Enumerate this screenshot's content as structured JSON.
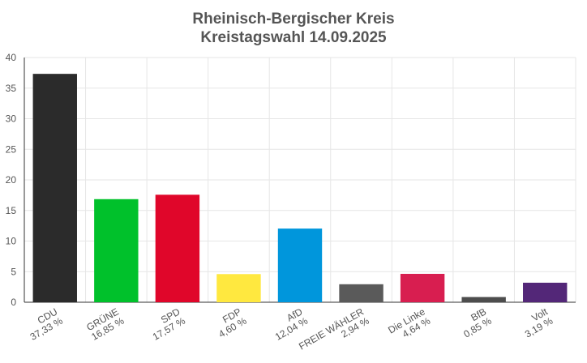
{
  "chart_data": {
    "type": "bar",
    "title": "Rheinisch-Bergischer Kreis",
    "subtitle": "Kreistagswahl 14.09.2025",
    "categories": [
      "CDU",
      "GRÜNE",
      "SPD",
      "FDP",
      "AfD",
      "FREIE WÄHLER",
      "Die Linke",
      "BfB",
      "Volt"
    ],
    "value_labels": [
      "37,33 %",
      "16,85 %",
      "17,57 %",
      "4,60 %",
      "12,04 %",
      "2,94 %",
      "4,64 %",
      "0,85 %",
      "3,19 %"
    ],
    "values": [
      37.33,
      16.85,
      17.57,
      4.6,
      12.04,
      2.94,
      4.64,
      0.85,
      3.19
    ],
    "colors": [
      "#2b2b2b",
      "#00c12b",
      "#e0062a",
      "#ffe83f",
      "#0096dc",
      "#5a5a5a",
      "#d81e50",
      "#4d4d4d",
      "#532778"
    ],
    "ylim": [
      0,
      40
    ],
    "yticks": [
      "0",
      "5",
      "10",
      "15",
      "20",
      "25",
      "30",
      "35",
      "40"
    ],
    "grid": true,
    "xlabel": "",
    "ylabel": ""
  }
}
